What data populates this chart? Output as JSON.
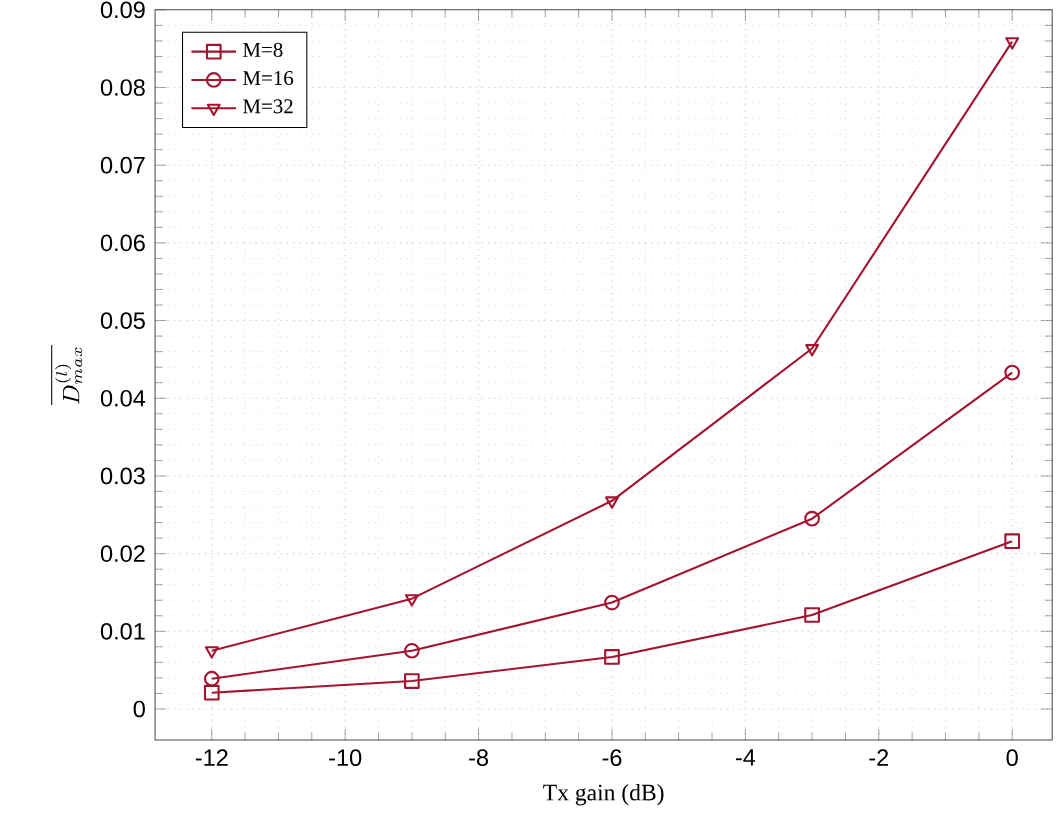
{
  "chart_data": {
    "type": "line",
    "xlabel": "Tx gain (dB)",
    "ylabel": "\\overline{D^{(l)}_{max}}",
    "x": [
      -12,
      -9,
      -6,
      -3,
      0
    ],
    "series": [
      {
        "name": "M=8",
        "color": "#a2142f",
        "marker": "square",
        "values": [
          0.0021,
          0.0036,
          0.0067,
          0.0121,
          0.0216
        ]
      },
      {
        "name": "M=16",
        "color": "#a2142f",
        "marker": "circle",
        "values": [
          0.0039,
          0.0075,
          0.0137,
          0.0245,
          0.0433
        ]
      },
      {
        "name": "M=32",
        "color": "#a2142f",
        "marker": "triangle",
        "values": [
          0.0075,
          0.0142,
          0.0268,
          0.0464,
          0.0859
        ]
      }
    ],
    "xlim": [
      -12.85,
      0.6
    ],
    "ylim": [
      -0.004,
      0.09
    ],
    "xticks": [
      -12,
      -10,
      -8,
      -6,
      -4,
      -2,
      0
    ],
    "yticks": [
      0,
      0.01,
      0.02,
      0.03,
      0.04,
      0.05,
      0.06,
      0.07,
      0.08,
      0.09
    ],
    "grid": true,
    "legend": "top left",
    "line_style": "solid"
  }
}
